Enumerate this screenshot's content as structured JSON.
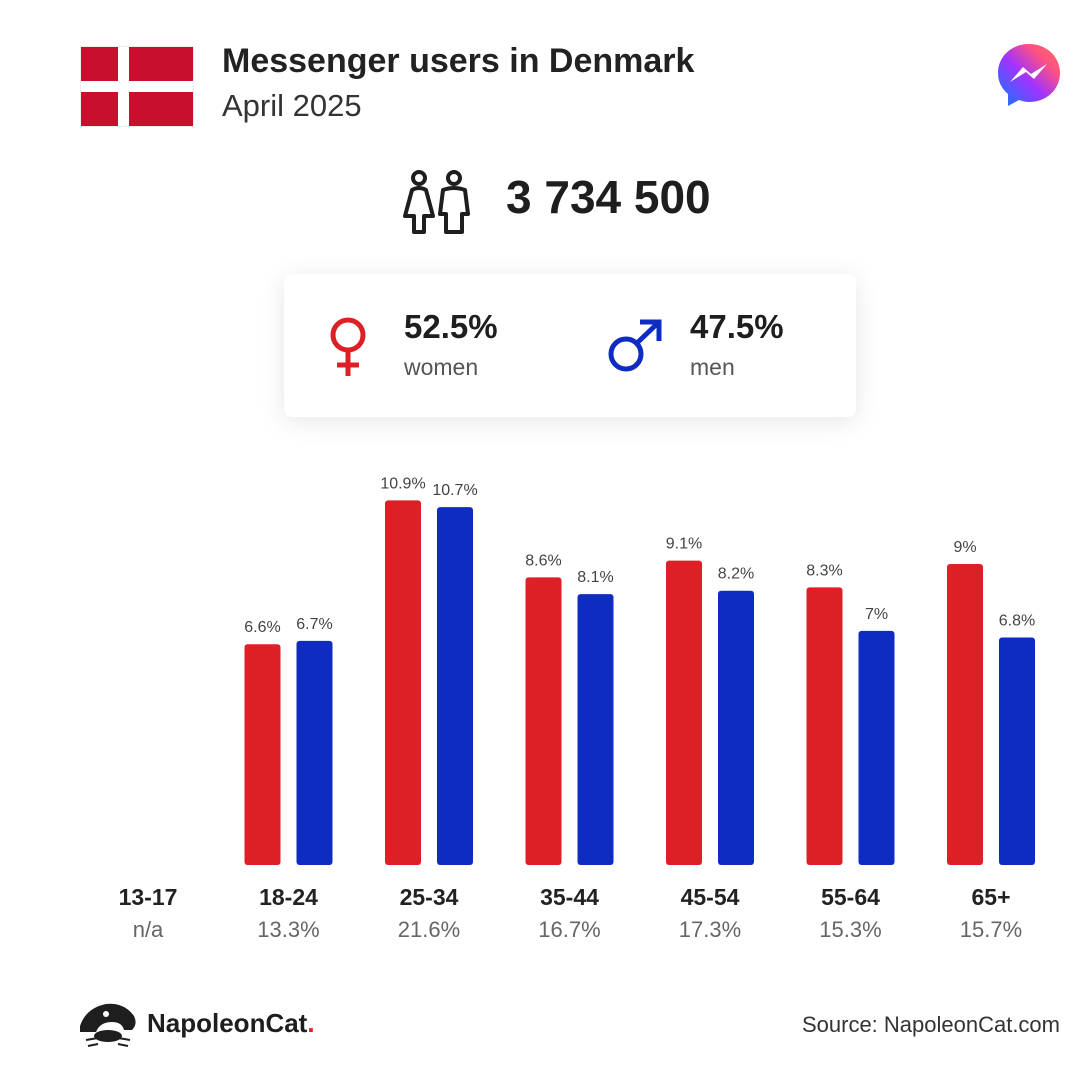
{
  "header": {
    "title": "Messenger users in Denmark",
    "subtitle": "April 2025"
  },
  "summary": {
    "total_users": "3 734 500",
    "women": {
      "percent": "52.5%",
      "label": "women"
    },
    "men": {
      "percent": "47.5%",
      "label": "men"
    }
  },
  "colors": {
    "women": "#dd1f26",
    "men": "#0f2cc2",
    "flag_red": "#c8102e"
  },
  "icons": [
    "denmark-flag-icon",
    "messenger-logo-icon",
    "users-icon",
    "female-symbol-icon",
    "male-symbol-icon",
    "napoleoncat-logo-icon"
  ],
  "chart_data": {
    "type": "bar",
    "categories": [
      "13-17",
      "18-24",
      "25-34",
      "35-44",
      "45-54",
      "55-64",
      "65+"
    ],
    "category_totals": [
      "n/a",
      "13.3%",
      "21.6%",
      "16.7%",
      "17.3%",
      "15.3%",
      "15.7%"
    ],
    "series": [
      {
        "name": "women",
        "values": [
          null,
          6.6,
          10.9,
          8.6,
          9.1,
          8.3,
          9
        ],
        "labels": [
          "",
          "6.6%",
          "10.9%",
          "8.6%",
          "9.1%",
          "8.3%",
          "9%"
        ]
      },
      {
        "name": "men",
        "values": [
          null,
          6.7,
          10.7,
          8.1,
          8.2,
          7,
          6.8
        ],
        "labels": [
          "",
          "6.7%",
          "10.7%",
          "8.1%",
          "8.2%",
          "7%",
          "6.8%"
        ]
      }
    ],
    "ylim": [
      0,
      11.6
    ],
    "grid": false,
    "axes_visible": false
  },
  "footer": {
    "brand": "NapoleonCat",
    "brand_dot": ".",
    "source": "Source: NapoleonCat.com"
  }
}
